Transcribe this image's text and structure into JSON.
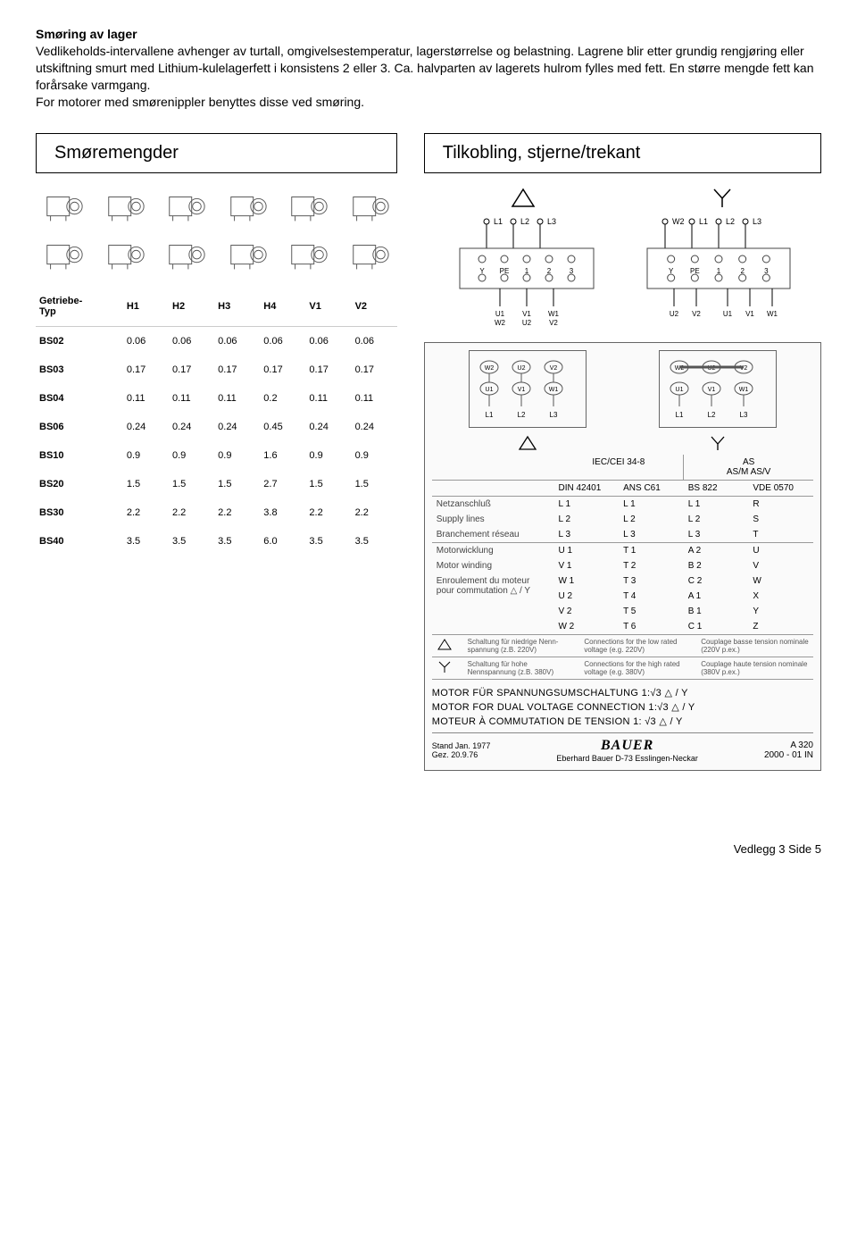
{
  "heading": "Smøring av lager",
  "para": "Vedlikeholds-intervallene avhenger av turtall, omgivelsestemperatur, lagerstørrelse og belastning. Lagrene blir etter grundig rengjøring eller utskiftning smurt med Lithium-kulelagerfett i konsistens 2 eller 3. Ca. halvparten av lagerets hulrom fylles med fett. En større mengde fett kan forårsake varmgang.\nFor motorer med smørenippler benyttes disse ved smøring.",
  "left_title": "Smøremengder",
  "right_title": "Tilkobling, stjerne/trekant",
  "smor": {
    "head_label": "Getriebe-\nTyp",
    "cols": [
      "H1",
      "H2",
      "H3",
      "H4",
      "V1",
      "V2"
    ],
    "rows": [
      {
        "t": "BS02",
        "v": [
          "0.06",
          "0.06",
          "0.06",
          "0.06",
          "0.06",
          "0.06"
        ]
      },
      {
        "t": "BS03",
        "v": [
          "0.17",
          "0.17",
          "0.17",
          "0.17",
          "0.17",
          "0.17"
        ]
      },
      {
        "t": "BS04",
        "v": [
          "0.11",
          "0.11",
          "0.11",
          "0.2",
          "0.11",
          "0.11"
        ]
      },
      {
        "t": "BS06",
        "v": [
          "0.24",
          "0.24",
          "0.24",
          "0.45",
          "0.24",
          "0.24"
        ]
      },
      {
        "t": "BS10",
        "v": [
          "0.9",
          "0.9",
          "0.9",
          "1.6",
          "0.9",
          "0.9"
        ]
      },
      {
        "t": "BS20",
        "v": [
          "1.5",
          "1.5",
          "1.5",
          "2.7",
          "1.5",
          "1.5"
        ]
      },
      {
        "t": "BS30",
        "v": [
          "2.2",
          "2.2",
          "2.2",
          "3.8",
          "2.2",
          "2.2"
        ]
      },
      {
        "t": "BS40",
        "v": [
          "3.5",
          "3.5",
          "3.5",
          "6.0",
          "3.5",
          "3.5"
        ]
      }
    ]
  },
  "wiring": {
    "delta_labels": [
      "L1",
      "L2",
      "L3"
    ],
    "y_labels_top": [
      "W2",
      "L1",
      "L2",
      "L3"
    ],
    "term_top_lbl": [
      "Y",
      "PE",
      "1",
      "2",
      "3"
    ],
    "term_bottom_delta": [
      "U1",
      "V1",
      "W1"
    ],
    "term_bottom_delta2": [
      "W2",
      "U2",
      "V2"
    ],
    "term_bottom_y_left": [
      "U2",
      "V2"
    ],
    "term_bottom_y_right": [
      "U1",
      "V1",
      "W1"
    ],
    "small_box_top": [
      "W2",
      "U2",
      "V2",
      "U1",
      "V1",
      "W1"
    ],
    "small_box_bottom": [
      "L1",
      "L2",
      "L3"
    ],
    "stds_head1": "IEC/CEI 34-8",
    "stds_head2": "AS\nAS/M AS/V",
    "stds_row": [
      "DIN 42401",
      "ANS C61",
      "BS 822",
      "VDE 0570"
    ],
    "netz": {
      "de": "Netzanschluß",
      "en": "Supply lines",
      "fr": "Branchement réseau"
    },
    "motor": {
      "de": "Motorwicklung",
      "en": "Motor winding",
      "fr": "Enroulement du moteur pour commutation △ / Y"
    },
    "netz_vals": [
      [
        "L 1",
        "L 1",
        "L 1",
        "R"
      ],
      [
        "L 2",
        "L 2",
        "L 2",
        "S"
      ],
      [
        "L 3",
        "L 3",
        "L 3",
        "T"
      ]
    ],
    "motor_vals": [
      [
        "U 1",
        "T 1",
        "A 2",
        "U"
      ],
      [
        "V 1",
        "T 2",
        "B 2",
        "V"
      ],
      [
        "W 1",
        "T 3",
        "C 2",
        "W"
      ],
      [
        "U 2",
        "T 4",
        "A 1",
        "X"
      ],
      [
        "V 2",
        "T 5",
        "B 1",
        "Y"
      ],
      [
        "W 2",
        "T 6",
        "C 1",
        "Z"
      ]
    ],
    "delta_note": [
      "Schaltung für niedrige Nenn-spannung (z.B. 220V)",
      "Connections for the low rated voltage (e.g. 220V)",
      "Couplage basse tension nominale (220V p.ex.)"
    ],
    "y_note": [
      "Schaltung für hohe Nennspannung (z.B. 380V)",
      "Connections for the high rated voltage (e.g. 380V)",
      "Couplage haute tension nominale (380V p.ex.)"
    ],
    "big1": "MOTOR FÜR SPANNUNGSUMSCHALTUNG 1:√3  △ / Y",
    "big2": "MOTOR FOR DUAL VOLTAGE CONNECTION 1:√3  △ / Y",
    "big3": "MOTEUR À COMMUTATION DE TENSION 1: √3  △ / Y",
    "stand": "Stand Jan. 1977",
    "gez": "Gez. 20.9.76",
    "logo": "BAUER",
    "logo_sub": "Eberhard Bauer D-73 Esslingen-Neckar",
    "code1": "A 320",
    "code2": "2000 - 01 IN"
  },
  "footer": "Vedlegg 3   Side   5"
}
